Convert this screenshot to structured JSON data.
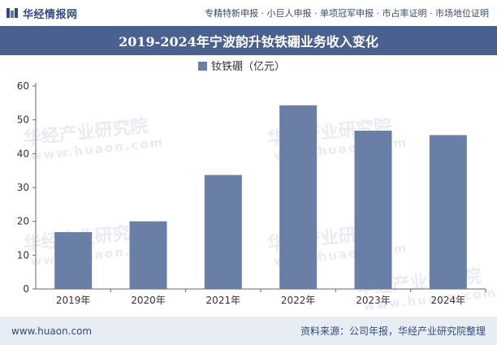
{
  "header": {
    "brand_name": "华经情报网",
    "services": "专精特新申报 · 小巨人申报 · 单项冠军申报 · 市占率证明 · 市场地位证明"
  },
  "watermarks": {
    "company": "华经产业研究院",
    "site": "www.huaon.com"
  },
  "footer": {
    "url": "www.huaon.com",
    "source": "资料来源：公司年报，华经产业研究院整理"
  },
  "colors": {
    "bar": "#6a7fa6",
    "title_band": "#4a6190",
    "footer_bg": "#e8edf4",
    "brand": "#2f4b7c"
  },
  "chart_data": {
    "type": "bar",
    "title": "2019-2024年宁波韵升钕铁硼业务收入变化",
    "categories": [
      "2019年",
      "2020年",
      "2021年",
      "2022年",
      "2023年",
      "2024年"
    ],
    "series": [
      {
        "name": "钕铁硼（亿元）",
        "values": [
          16.8,
          20.0,
          33.7,
          54.3,
          46.8,
          45.5
        ]
      }
    ],
    "yticks": [
      0,
      10,
      20,
      30,
      40,
      50,
      60
    ],
    "ylim": [
      0,
      60
    ],
    "xlabel": "",
    "ylabel": "",
    "legend_position": "top-center",
    "grid": false
  }
}
